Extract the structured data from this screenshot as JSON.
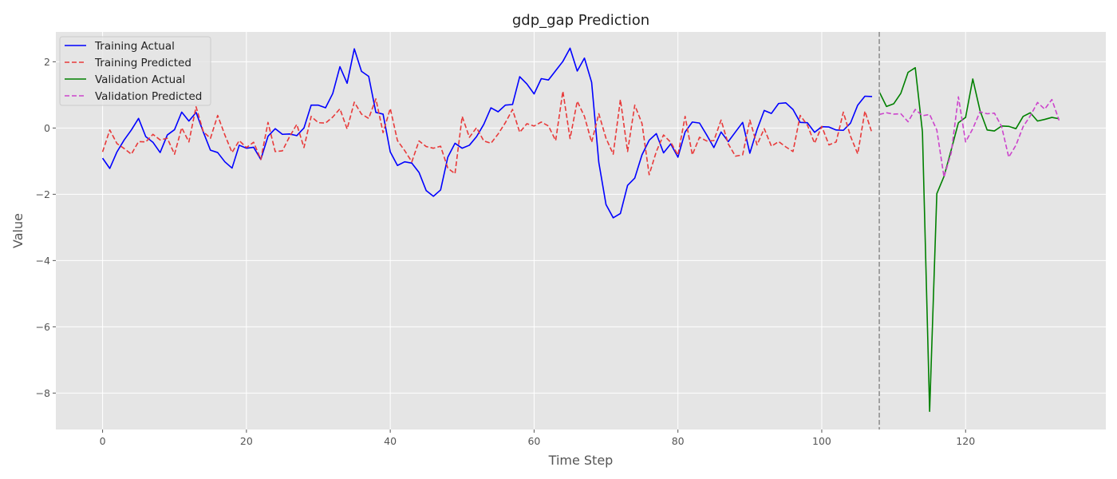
{
  "chart_data": {
    "type": "line",
    "title": "gdp_gap Prediction",
    "xlabel": "Time Step",
    "ylabel": "Value",
    "xlim": [
      -6.5,
      139.5
    ],
    "ylim": [
      -9.1,
      2.9
    ],
    "xticks": [
      0,
      20,
      40,
      60,
      80,
      100,
      120
    ],
    "yticks": [
      -8,
      -6,
      -4,
      -2,
      0,
      2
    ],
    "grid": true,
    "legend_position": "top-left",
    "divider_x": 108,
    "series": [
      {
        "name": "Training Actual",
        "color": "#0000ff",
        "dash": "solid",
        "x_start": 0,
        "values": [
          -0.91,
          -1.22,
          -0.72,
          -0.36,
          -0.06,
          0.29,
          -0.26,
          -0.43,
          -0.74,
          -0.21,
          -0.05,
          0.48,
          0.21,
          0.47,
          -0.12,
          -0.67,
          -0.74,
          -1.02,
          -1.21,
          -0.52,
          -0.61,
          -0.58,
          -0.95,
          -0.25,
          -0.02,
          -0.19,
          -0.18,
          -0.23,
          0.0,
          0.69,
          0.69,
          0.61,
          1.04,
          1.85,
          1.35,
          2.39,
          1.71,
          1.56,
          0.47,
          0.42,
          -0.72,
          -1.13,
          -1.02,
          -1.06,
          -1.34,
          -1.89,
          -2.06,
          -1.87,
          -0.88,
          -0.46,
          -0.61,
          -0.52,
          -0.26,
          0.11,
          0.61,
          0.49,
          0.69,
          0.71,
          1.55,
          1.33,
          1.03,
          1.49,
          1.45,
          1.73,
          2.01,
          2.41,
          1.72,
          2.11,
          1.38,
          -1.04,
          -2.31,
          -2.71,
          -2.58,
          -1.73,
          -1.51,
          -0.81,
          -0.37,
          -0.17,
          -0.75,
          -0.48,
          -0.88,
          -0.12,
          0.18,
          0.15,
          -0.21,
          -0.59,
          -0.12,
          -0.41,
          -0.12,
          0.17,
          -0.76,
          -0.05,
          0.53,
          0.44,
          0.74,
          0.76,
          0.56,
          0.17,
          0.16,
          -0.13,
          0.04,
          0.03,
          -0.06,
          -0.07,
          0.15,
          0.69,
          0.96,
          0.95
        ]
      },
      {
        "name": "Training Predicted",
        "color": "#e83a3a",
        "dash": "dashed",
        "x_start": 0,
        "values": [
          -0.72,
          -0.06,
          -0.47,
          -0.62,
          -0.79,
          -0.41,
          -0.42,
          -0.19,
          -0.36,
          -0.31,
          -0.79,
          0.01,
          -0.42,
          0.64,
          -0.11,
          -0.31,
          0.38,
          -0.21,
          -0.74,
          -0.38,
          -0.59,
          -0.43,
          -0.95,
          0.17,
          -0.71,
          -0.69,
          -0.26,
          0.11,
          -0.59,
          0.35,
          0.16,
          0.15,
          0.33,
          0.58,
          -0.03,
          0.78,
          0.42,
          0.29,
          0.88,
          -0.14,
          0.59,
          -0.38,
          -0.68,
          -1.02,
          -0.39,
          -0.56,
          -0.61,
          -0.55,
          -1.21,
          -1.38,
          0.35,
          -0.28,
          0.01,
          -0.39,
          -0.46,
          -0.18,
          0.16,
          0.56,
          -0.13,
          0.13,
          0.06,
          0.18,
          0.06,
          -0.38,
          1.11,
          -0.32,
          0.81,
          0.35,
          -0.43,
          0.43,
          -0.31,
          -0.79,
          0.86,
          -0.71,
          0.69,
          0.14,
          -1.41,
          -0.71,
          -0.21,
          -0.43,
          -0.82,
          0.35,
          -0.81,
          -0.28,
          -0.39,
          -0.38,
          0.24,
          -0.48,
          -0.85,
          -0.81,
          0.24,
          -0.51,
          -0.02,
          -0.55,
          -0.41,
          -0.57,
          -0.71,
          0.38,
          0.09,
          -0.46,
          0.05,
          -0.51,
          -0.42,
          0.48,
          -0.25,
          -0.78,
          0.51,
          -0.16
        ]
      },
      {
        "name": "Validation Actual",
        "color": "#008000",
        "dash": "solid",
        "x_start": 108,
        "values": [
          1.09,
          0.65,
          0.73,
          1.05,
          1.68,
          1.82,
          -0.12,
          -8.55,
          -1.98,
          -1.46,
          -0.66,
          0.16,
          0.32,
          1.48,
          0.53,
          -0.06,
          -0.09,
          0.06,
          0.05,
          -0.02,
          0.35,
          0.46,
          0.21,
          0.26,
          0.32,
          0.28
        ]
      },
      {
        "name": "Validation Predicted",
        "color": "#cc44cc",
        "dash": "dashed",
        "x_start": 108,
        "values": [
          0.41,
          0.46,
          0.42,
          0.43,
          0.19,
          0.56,
          0.37,
          0.41,
          -0.06,
          -1.48,
          -0.75,
          0.94,
          -0.42,
          -0.02,
          0.49,
          0.43,
          0.45,
          0.05,
          -0.88,
          -0.52,
          0.04,
          0.37,
          0.77,
          0.57,
          0.86,
          0.23
        ]
      }
    ]
  }
}
